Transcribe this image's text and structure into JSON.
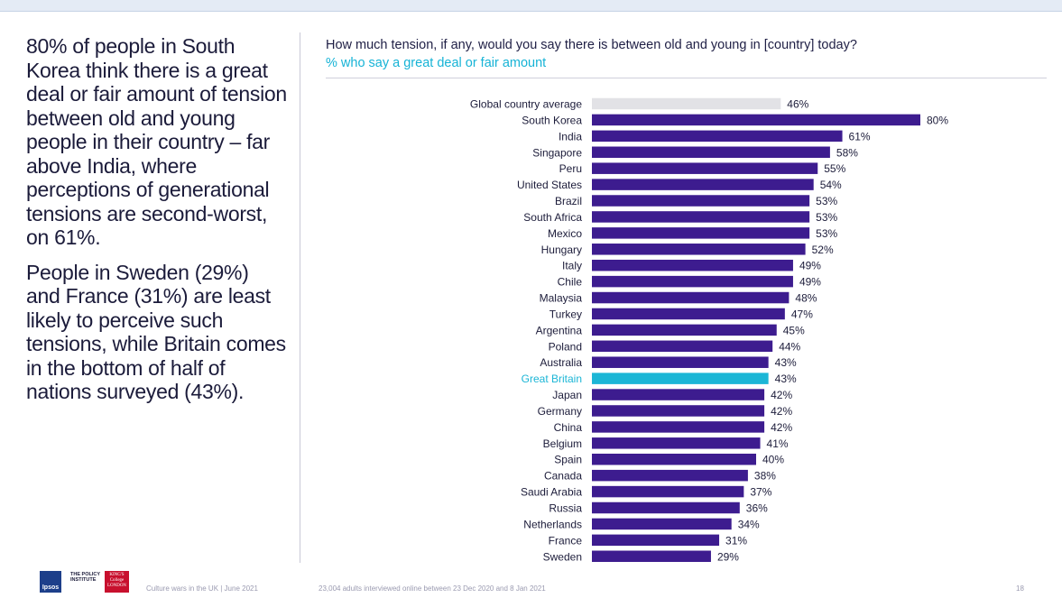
{
  "left_text": {
    "paragraph_1": "80% of people in South Korea think there is a great deal or fair amount of tension between old and young people in their country – far above India, where perceptions of generational tensions are second-worst, on 61%.",
    "paragraph_2": "People in Sweden (29%) and France (31%) are least likely to perceive such tensions, while Britain comes in the bottom of half of nations surveyed (43%)."
  },
  "colors": {
    "bar_default": "#3d1c8f",
    "bar_average": "#e2e2e6",
    "bar_highlight": "#1cb6d6",
    "label_default": "#1c1c3a",
    "label_highlight": "#1cb6d6"
  },
  "chart_data": {
    "type": "bar",
    "orientation": "horizontal",
    "title": "How much tension, if any, would you say there is between old and young in [country] today?",
    "subtitle": "% who say a great deal or fair amount",
    "unit": "%",
    "xlim": [
      0,
      100
    ],
    "average_category": "Global country average",
    "highlight_category": "Great Britain",
    "categories": [
      "Global country average",
      "South Korea",
      "India",
      "Singapore",
      "Peru",
      "United States",
      "Brazil",
      "South Africa",
      "Mexico",
      "Hungary",
      "Italy",
      "Chile",
      "Malaysia",
      "Turkey",
      "Argentina",
      "Poland",
      "Australia",
      "Great Britain",
      "Japan",
      "Germany",
      "China",
      "Belgium",
      "Spain",
      "Canada",
      "Saudi Arabia",
      "Russia",
      "Netherlands",
      "France",
      "Sweden"
    ],
    "values": [
      46,
      80,
      61,
      58,
      55,
      54,
      53,
      53,
      53,
      52,
      49,
      49,
      48,
      47,
      45,
      44,
      43,
      43,
      42,
      42,
      42,
      41,
      40,
      38,
      37,
      36,
      34,
      31,
      29
    ]
  },
  "footer": {
    "logo_ipsos": "Ipsos",
    "logo_policy": "THE POLICY INSTITUTE",
    "logo_kings": "KING'S College LONDON",
    "report": "Culture wars in the UK | June 2021",
    "note": "23,004 adults interviewed online between 23 Dec 2020 and 8 Jan 2021",
    "page_number": "18"
  }
}
